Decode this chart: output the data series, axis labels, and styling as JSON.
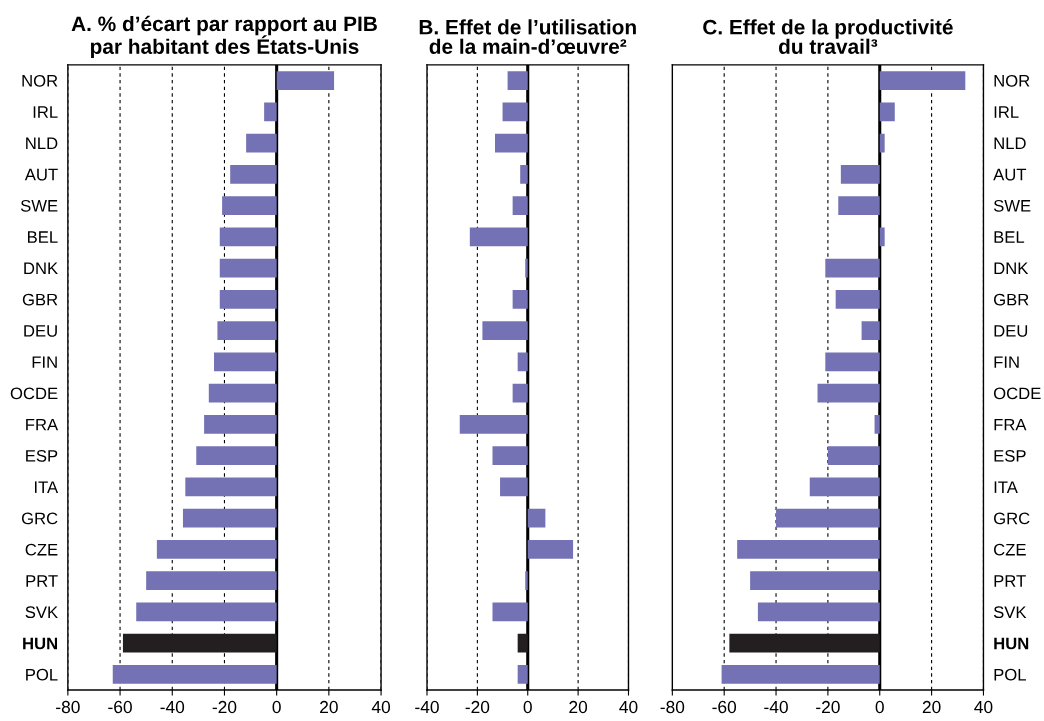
{
  "chart_data": [
    {
      "type": "bar",
      "orientation": "horizontal",
      "title": "A. % d’écart par rapport au PIB\npar habitant des États-Unis",
      "categories": [
        "NOR",
        "IRL",
        "NLD",
        "AUT",
        "SWE",
        "BEL",
        "DNK",
        "GBR",
        "DEU",
        "FIN",
        "OCDE",
        "FRA",
        "ESP",
        "ITA",
        "GRC",
        "CZE",
        "PRT",
        "SVK",
        "HUN",
        "POL"
      ],
      "values": [
        22,
        -4.8,
        -11.7,
        -17.8,
        -20.9,
        -21.8,
        -21.8,
        -21.8,
        -22.7,
        -24,
        -26,
        -27.8,
        -30.8,
        -35,
        -35.9,
        -45.9,
        -50,
        -53.8,
        -58.9,
        -62.8
      ],
      "colors": [
        "#7472b4",
        "#7472b4",
        "#7472b4",
        "#7472b4",
        "#7472b4",
        "#7472b4",
        "#7472b4",
        "#7472b4",
        "#7472b4",
        "#7472b4",
        "#7472b4",
        "#7472b4",
        "#7472b4",
        "#7472b4",
        "#7472b4",
        "#7472b4",
        "#7472b4",
        "#7472b4",
        "#231f20",
        "#7472b4"
      ],
      "xlim": [
        -80,
        40
      ],
      "xticks": [
        -80,
        -60,
        -40,
        -20,
        0,
        20,
        40
      ],
      "grid": "x",
      "ref_lines": [
        {
          "axis": "x",
          "value": 0,
          "color": "#000000"
        }
      ]
    },
    {
      "type": "bar",
      "orientation": "horizontal",
      "title": "B. Effet de l’utilisation\nde la main-d’œuvre²",
      "categories": [
        null,
        null,
        null,
        null,
        null,
        null,
        null,
        null,
        null,
        null,
        null,
        null,
        null,
        null,
        null,
        null,
        null,
        null,
        null,
        null
      ],
      "values": [
        -8,
        -10,
        -13,
        -3,
        -6,
        -23,
        -1,
        -6,
        -18,
        -4,
        -6,
        -27,
        -14,
        -11,
        7,
        18,
        -1,
        -14,
        -4,
        -4
      ],
      "colors": [
        "#7472b4",
        "#7472b4",
        "#7472b4",
        "#7472b4",
        "#7472b4",
        "#7472b4",
        "#7472b4",
        "#7472b4",
        "#7472b4",
        "#7472b4",
        "#7472b4",
        "#7472b4",
        "#7472b4",
        "#7472b4",
        "#7472b4",
        "#7472b4",
        "#7472b4",
        "#7472b4",
        "#231f20",
        "#7472b4"
      ],
      "xlim": [
        -40,
        40
      ],
      "xticks": [
        -40,
        -20,
        0,
        20,
        40
      ],
      "grid": "x",
      "ref_lines": [
        {
          "axis": "x",
          "value": 0,
          "color": "#000000"
        }
      ]
    },
    {
      "type": "bar",
      "orientation": "horizontal",
      "title": "C. Effet de la productivité\ndu travail³",
      "categories": [
        "NOR",
        "IRL",
        "NLD",
        "AUT",
        "SWE",
        "BEL",
        "DNK",
        "GBR",
        "DEU",
        "FIN",
        "OCDE",
        "FRA",
        "ESP",
        "ITA",
        "GRC",
        "CZE",
        "PRT",
        "SVK",
        "HUN",
        "POL"
      ],
      "values": [
        33,
        5.8,
        1.9,
        -15,
        -16,
        1.9,
        -21,
        -17,
        -7,
        -21,
        -24,
        -2,
        -20,
        -27,
        -40,
        -55,
        -50,
        -47,
        -58,
        -61
      ],
      "colors": [
        "#7472b4",
        "#7472b4",
        "#7472b4",
        "#7472b4",
        "#7472b4",
        "#7472b4",
        "#7472b4",
        "#7472b4",
        "#7472b4",
        "#7472b4",
        "#7472b4",
        "#7472b4",
        "#7472b4",
        "#7472b4",
        "#7472b4",
        "#7472b4",
        "#7472b4",
        "#7472b4",
        "#231f20",
        "#7472b4"
      ],
      "xlim": [
        -80,
        40
      ],
      "xticks": [
        -80,
        -60,
        -40,
        -20,
        0,
        20,
        40
      ],
      "grid": "x",
      "ref_lines": [
        {
          "axis": "x",
          "value": 0,
          "color": "#000000"
        }
      ]
    }
  ]
}
